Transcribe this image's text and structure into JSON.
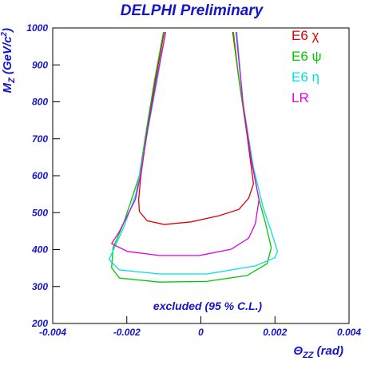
{
  "chart_data": {
    "type": "line",
    "title": "DELPHI Preliminary",
    "annotation": "excluded (95 % C.L.)",
    "xlabel": {
      "main": "Θ",
      "sub": "ZZ",
      "rest": " (rad)"
    },
    "ylabel": {
      "main": "M",
      "sub": "Z",
      "rest": " (GeV/c",
      "sup": "2",
      "end": ")"
    },
    "xlim": [
      -0.004,
      0.004
    ],
    "ylim": [
      200,
      1000
    ],
    "xticks": [
      -0.004,
      -0.002,
      0,
      0.002,
      0.004
    ],
    "yticks": [
      200,
      300,
      400,
      500,
      600,
      700,
      800,
      900,
      1000
    ],
    "legend": "top-right",
    "series": [
      {
        "name": "E6 χ",
        "color": "#e00000",
        "x": [
          -0.00099,
          -0.00123,
          -0.00144,
          -0.00162,
          -0.00168,
          -0.00166,
          -0.00145,
          -0.00099,
          -0.00026,
          0.0005,
          0.00103,
          0.00129,
          0.00142,
          0.00125,
          0.00103,
          0.00086
        ],
        "values": [
          989,
          859,
          730,
          600,
          535,
          503,
          478,
          468,
          475,
          492,
          509,
          539,
          578,
          708,
          859,
          989
        ]
      },
      {
        "name": "E6 ψ",
        "color": "#00c800",
        "x": [
          -0.00101,
          -0.00125,
          -0.00146,
          -0.00166,
          -0.00209,
          -0.00237,
          -0.00241,
          -0.0022,
          -0.00112,
          0.00017,
          0.00125,
          0.00179,
          0.0019,
          0.00175,
          0.00157,
          0.00136,
          0.00103,
          0.00088
        ],
        "values": [
          989,
          859,
          730,
          600,
          470,
          405,
          351,
          323,
          312,
          314,
          330,
          362,
          405,
          470,
          535,
          643,
          859,
          989
        ]
      },
      {
        "name": "E6 η",
        "color": "#00e0e0",
        "x": [
          -0.00095,
          -0.00118,
          -0.00142,
          -0.00161,
          -0.00177,
          -0.00209,
          -0.00241,
          -0.00248,
          -0.0022,
          -0.00112,
          0.00017,
          0.00147,
          0.002,
          0.00207,
          0.0019,
          0.00168,
          0.00142,
          0.00114,
          0.00097
        ],
        "values": [
          989,
          859,
          730,
          622,
          545,
          459,
          388,
          373,
          345,
          334,
          334,
          356,
          378,
          395,
          449,
          514,
          622,
          795,
          989
        ]
      },
      {
        "name": "LR",
        "color": "#e000e0",
        "x": [
          -0.00095,
          -0.0012,
          -0.00143,
          -0.00163,
          -0.00177,
          -0.0022,
          -0.00241,
          -0.00198,
          -0.00112,
          -4e-05,
          0.00082,
          0.00129,
          0.00147,
          0.00157,
          0.00136,
          0.00114,
          0.00095
        ],
        "values": [
          989,
          859,
          730,
          600,
          535,
          449,
          416,
          395,
          384,
          384,
          401,
          431,
          470,
          535,
          643,
          795,
          989
        ]
      }
    ]
  }
}
